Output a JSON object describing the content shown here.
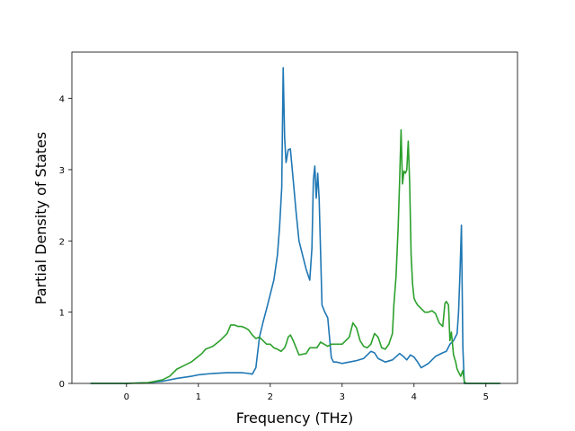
{
  "chart_data": {
    "type": "line",
    "xlabel": "Frequency (THz)",
    "ylabel": "Partial Density of States",
    "xlim": [
      -0.76,
      5.44
    ],
    "ylim": [
      0,
      4.65
    ],
    "xticks": [
      0,
      1,
      2,
      3,
      4,
      5
    ],
    "yticks": [
      0,
      1,
      2,
      3,
      4
    ],
    "grid": false,
    "series": [
      {
        "color": "#1f77b4",
        "x": [
          -0.5,
          0.0,
          0.3,
          0.5,
          0.7,
          0.9,
          1.0,
          1.2,
          1.4,
          1.6,
          1.7,
          1.75,
          1.8,
          1.85,
          1.9,
          1.95,
          2.0,
          2.05,
          2.1,
          2.13,
          2.16,
          2.18,
          2.2,
          2.22,
          2.25,
          2.28,
          2.32,
          2.36,
          2.4,
          2.45,
          2.5,
          2.55,
          2.58,
          2.6,
          2.62,
          2.64,
          2.66,
          2.68,
          2.72,
          2.76,
          2.8,
          2.85,
          2.88,
          2.92,
          3.0,
          3.1,
          3.2,
          3.3,
          3.4,
          3.45,
          3.5,
          3.6,
          3.7,
          3.8,
          3.85,
          3.9,
          3.95,
          4.0,
          4.05,
          4.1,
          4.2,
          4.3,
          4.4,
          4.45,
          4.5,
          4.55,
          4.6,
          4.62,
          4.64,
          4.66,
          4.68,
          4.7,
          4.75,
          5.0,
          5.2
        ],
        "values": [
          0.0,
          0.0,
          0.01,
          0.03,
          0.07,
          0.1,
          0.12,
          0.14,
          0.15,
          0.15,
          0.14,
          0.13,
          0.22,
          0.65,
          0.86,
          1.05,
          1.25,
          1.45,
          1.8,
          2.2,
          2.75,
          4.43,
          3.45,
          3.1,
          3.28,
          3.29,
          2.85,
          2.4,
          2.0,
          1.8,
          1.6,
          1.45,
          1.9,
          2.85,
          3.05,
          2.6,
          2.95,
          2.6,
          1.1,
          1.0,
          0.92,
          0.36,
          0.3,
          0.3,
          0.28,
          0.3,
          0.32,
          0.35,
          0.45,
          0.43,
          0.35,
          0.3,
          0.33,
          0.42,
          0.38,
          0.33,
          0.4,
          0.37,
          0.3,
          0.22,
          0.28,
          0.38,
          0.43,
          0.45,
          0.55,
          0.6,
          0.7,
          1.0,
          1.55,
          2.22,
          0.5,
          0.0,
          0.0,
          0.0,
          0.0
        ]
      },
      {
        "color": "#2ca02c",
        "x": [
          -0.5,
          0.0,
          0.3,
          0.5,
          0.6,
          0.7,
          0.8,
          0.9,
          1.0,
          1.05,
          1.1,
          1.2,
          1.3,
          1.35,
          1.4,
          1.45,
          1.5,
          1.55,
          1.6,
          1.65,
          1.7,
          1.75,
          1.8,
          1.85,
          1.9,
          1.95,
          2.0,
          2.05,
          2.1,
          2.15,
          2.2,
          2.22,
          2.25,
          2.28,
          2.32,
          2.36,
          2.4,
          2.5,
          2.55,
          2.6,
          2.65,
          2.7,
          2.75,
          2.8,
          2.85,
          2.9,
          3.0,
          3.1,
          3.15,
          3.2,
          3.25,
          3.3,
          3.35,
          3.4,
          3.45,
          3.5,
          3.55,
          3.6,
          3.65,
          3.7,
          3.72,
          3.75,
          3.78,
          3.8,
          3.82,
          3.84,
          3.86,
          3.88,
          3.9,
          3.92,
          3.94,
          3.96,
          3.98,
          4.0,
          4.02,
          4.05,
          4.1,
          4.15,
          4.2,
          4.25,
          4.3,
          4.35,
          4.4,
          4.43,
          4.45,
          4.48,
          4.5,
          4.52,
          4.55,
          4.58,
          4.6,
          4.65,
          4.68,
          4.7,
          4.72,
          4.75,
          5.0,
          5.2
        ],
        "values": [
          0.0,
          0.0,
          0.01,
          0.05,
          0.1,
          0.2,
          0.25,
          0.3,
          0.38,
          0.42,
          0.48,
          0.52,
          0.6,
          0.65,
          0.7,
          0.82,
          0.82,
          0.8,
          0.8,
          0.78,
          0.75,
          0.68,
          0.63,
          0.65,
          0.6,
          0.55,
          0.55,
          0.5,
          0.48,
          0.45,
          0.5,
          0.55,
          0.65,
          0.68,
          0.6,
          0.5,
          0.4,
          0.42,
          0.5,
          0.5,
          0.5,
          0.58,
          0.55,
          0.52,
          0.55,
          0.55,
          0.55,
          0.65,
          0.85,
          0.78,
          0.6,
          0.52,
          0.5,
          0.55,
          0.7,
          0.65,
          0.5,
          0.48,
          0.55,
          0.7,
          1.1,
          1.5,
          2.2,
          2.85,
          3.56,
          2.8,
          2.98,
          2.95,
          3.0,
          3.4,
          2.8,
          1.8,
          1.4,
          1.2,
          1.15,
          1.1,
          1.05,
          1.0,
          1.0,
          1.02,
          0.98,
          0.85,
          0.8,
          1.12,
          1.15,
          1.1,
          0.6,
          0.72,
          0.4,
          0.3,
          0.2,
          0.1,
          0.18,
          0.03,
          0.0,
          0.0,
          0.0,
          0.0
        ]
      }
    ]
  }
}
